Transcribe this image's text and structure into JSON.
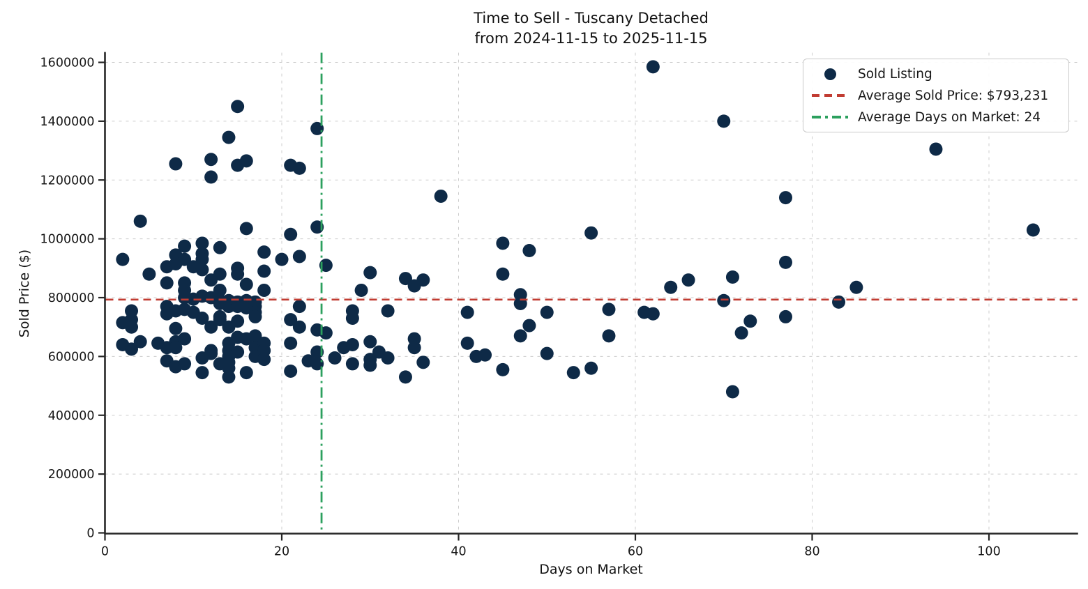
{
  "chart_data": {
    "type": "scatter",
    "title": "Time to Sell - Tuscany Detached",
    "subtitle": "from 2024-11-15 to 2025-11-15",
    "xlabel": "Days on Market",
    "ylabel": "Sold Price ($)",
    "xlim": [
      0,
      110
    ],
    "ylim": [
      0,
      1633000
    ],
    "xticks": [
      0,
      20,
      40,
      60,
      80,
      100
    ],
    "yticks": [
      0,
      200000,
      400000,
      600000,
      800000,
      1000000,
      1200000,
      1400000,
      1600000
    ],
    "grid": true,
    "legend_position": "upper right",
    "series": [
      {
        "name": "Sold Listing",
        "points": [
          [
            2,
            930000
          ],
          [
            2,
            715000
          ],
          [
            2,
            640000
          ],
          [
            3,
            755000
          ],
          [
            3,
            725000
          ],
          [
            3,
            700000
          ],
          [
            3,
            625000
          ],
          [
            4,
            1060000
          ],
          [
            4,
            650000
          ],
          [
            5,
            880000
          ],
          [
            6,
            645000
          ],
          [
            7,
            905000
          ],
          [
            7,
            850000
          ],
          [
            7,
            770000
          ],
          [
            7,
            745000
          ],
          [
            7,
            630000
          ],
          [
            7,
            585000
          ],
          [
            8,
            1255000
          ],
          [
            8,
            945000
          ],
          [
            8,
            915000
          ],
          [
            8,
            755000
          ],
          [
            8,
            695000
          ],
          [
            8,
            650000
          ],
          [
            8,
            630000
          ],
          [
            8,
            565000
          ],
          [
            9,
            975000
          ],
          [
            9,
            930000
          ],
          [
            9,
            850000
          ],
          [
            9,
            825000
          ],
          [
            9,
            800000
          ],
          [
            9,
            760000
          ],
          [
            9,
            660000
          ],
          [
            9,
            575000
          ],
          [
            10,
            905000
          ],
          [
            10,
            795000
          ],
          [
            10,
            750000
          ],
          [
            11,
            985000
          ],
          [
            11,
            950000
          ],
          [
            11,
            930000
          ],
          [
            11,
            895000
          ],
          [
            11,
            805000
          ],
          [
            11,
            730000
          ],
          [
            11,
            595000
          ],
          [
            11,
            545000
          ],
          [
            12,
            1270000
          ],
          [
            12,
            1210000
          ],
          [
            12,
            860000
          ],
          [
            12,
            800000
          ],
          [
            12,
            700000
          ],
          [
            12,
            620000
          ],
          [
            12,
            610000
          ],
          [
            13,
            970000
          ],
          [
            13,
            880000
          ],
          [
            13,
            825000
          ],
          [
            13,
            790000
          ],
          [
            13,
            780000
          ],
          [
            13,
            735000
          ],
          [
            13,
            725000
          ],
          [
            13,
            575000
          ],
          [
            14,
            1345000
          ],
          [
            14,
            790000
          ],
          [
            14,
            770000
          ],
          [
            14,
            700000
          ],
          [
            14,
            645000
          ],
          [
            14,
            620000
          ],
          [
            14,
            600000
          ],
          [
            14,
            580000
          ],
          [
            14,
            560000
          ],
          [
            14,
            530000
          ],
          [
            15,
            1450000
          ],
          [
            15,
            1250000
          ],
          [
            15,
            900000
          ],
          [
            15,
            880000
          ],
          [
            15,
            785000
          ],
          [
            15,
            770000
          ],
          [
            15,
            720000
          ],
          [
            15,
            665000
          ],
          [
            15,
            615000
          ],
          [
            16,
            1265000
          ],
          [
            16,
            1035000
          ],
          [
            16,
            845000
          ],
          [
            16,
            790000
          ],
          [
            16,
            765000
          ],
          [
            16,
            660000
          ],
          [
            16,
            545000
          ],
          [
            17,
            785000
          ],
          [
            17,
            770000
          ],
          [
            17,
            750000
          ],
          [
            17,
            735000
          ],
          [
            17,
            670000
          ],
          [
            17,
            630000
          ],
          [
            17,
            600000
          ],
          [
            18,
            955000
          ],
          [
            18,
            890000
          ],
          [
            18,
            825000
          ],
          [
            18,
            645000
          ],
          [
            18,
            620000
          ],
          [
            18,
            590000
          ],
          [
            20,
            930000
          ],
          [
            21,
            1250000
          ],
          [
            21,
            1015000
          ],
          [
            21,
            725000
          ],
          [
            21,
            645000
          ],
          [
            21,
            550000
          ],
          [
            22,
            1240000
          ],
          [
            22,
            940000
          ],
          [
            22,
            770000
          ],
          [
            22,
            700000
          ],
          [
            23,
            585000
          ],
          [
            24,
            1375000
          ],
          [
            24,
            1040000
          ],
          [
            24,
            690000
          ],
          [
            24,
            615000
          ],
          [
            24,
            575000
          ],
          [
            25,
            910000
          ],
          [
            25,
            680000
          ],
          [
            26,
            595000
          ],
          [
            27,
            630000
          ],
          [
            28,
            755000
          ],
          [
            28,
            730000
          ],
          [
            28,
            640000
          ],
          [
            28,
            575000
          ],
          [
            29,
            825000
          ],
          [
            30,
            885000
          ],
          [
            30,
            650000
          ],
          [
            30,
            590000
          ],
          [
            30,
            570000
          ],
          [
            31,
            615000
          ],
          [
            32,
            755000
          ],
          [
            32,
            595000
          ],
          [
            34,
            865000
          ],
          [
            34,
            530000
          ],
          [
            35,
            840000
          ],
          [
            35,
            660000
          ],
          [
            35,
            630000
          ],
          [
            36,
            860000
          ],
          [
            36,
            580000
          ],
          [
            38,
            1145000
          ],
          [
            41,
            750000
          ],
          [
            41,
            645000
          ],
          [
            42,
            600000
          ],
          [
            43,
            605000
          ],
          [
            45,
            985000
          ],
          [
            45,
            880000
          ],
          [
            45,
            555000
          ],
          [
            47,
            810000
          ],
          [
            47,
            780000
          ],
          [
            47,
            670000
          ],
          [
            48,
            960000
          ],
          [
            48,
            705000
          ],
          [
            50,
            750000
          ],
          [
            50,
            610000
          ],
          [
            53,
            545000
          ],
          [
            55,
            1020000
          ],
          [
            55,
            560000
          ],
          [
            57,
            760000
          ],
          [
            57,
            670000
          ],
          [
            61,
            750000
          ],
          [
            62,
            1585000
          ],
          [
            62,
            745000
          ],
          [
            64,
            835000
          ],
          [
            66,
            860000
          ],
          [
            70,
            1400000
          ],
          [
            70,
            790000
          ],
          [
            71,
            870000
          ],
          [
            71,
            480000
          ],
          [
            72,
            680000
          ],
          [
            73,
            720000
          ],
          [
            77,
            1140000
          ],
          [
            77,
            920000
          ],
          [
            77,
            735000
          ],
          [
            83,
            785000
          ],
          [
            85,
            835000
          ],
          [
            94,
            1305000
          ],
          [
            105,
            1030000
          ]
        ]
      }
    ],
    "reference_lines": {
      "avg_price": {
        "label": "Average Sold Price: $793,231",
        "value": 793231,
        "style": "dashed"
      },
      "avg_days": {
        "label": "Average Days on Market: 24",
        "value": 24.5,
        "style": "dashdot"
      }
    },
    "legend_series_label": "Sold Listing"
  },
  "colors": {
    "dot": "#0e2a47",
    "avg_price_line": "#c13c32",
    "avg_days_line": "#2ca05e",
    "grid": "#cccccc",
    "spine": "#262626",
    "text": "#161616"
  }
}
